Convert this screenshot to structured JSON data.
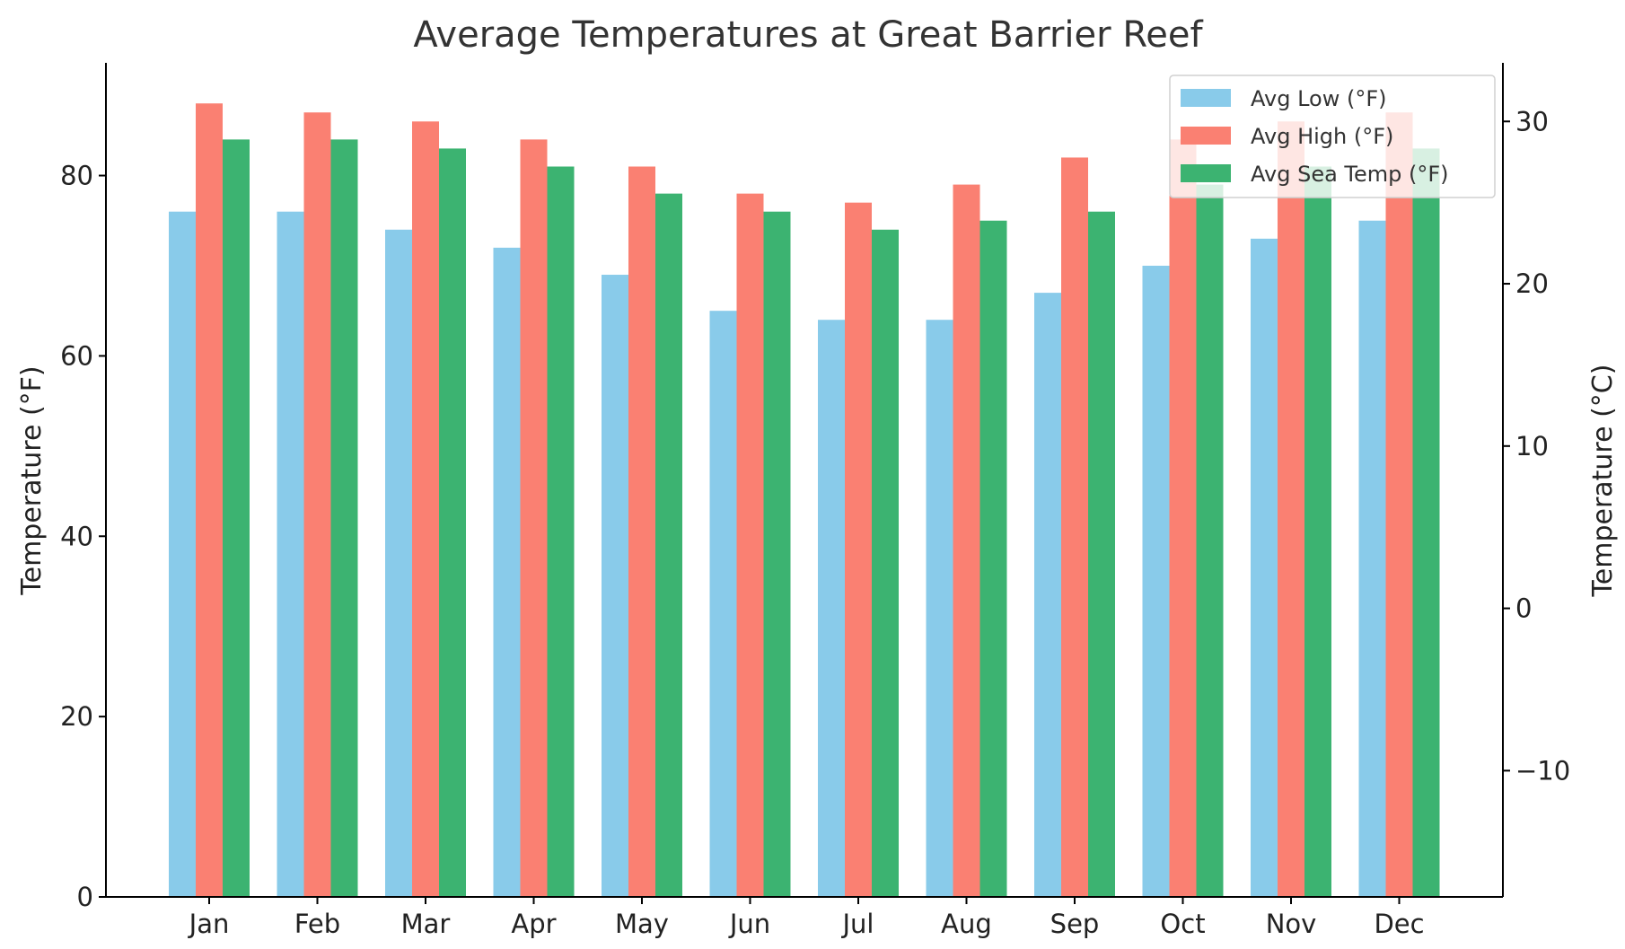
{
  "chart_data": {
    "type": "bar",
    "title": "Average Temperatures at Great Barrier Reef",
    "xlabel": "",
    "ylabel": "Temperature (°F)",
    "ylabel_right": "Temperature (°C)",
    "categories": [
      "Jan",
      "Feb",
      "Mar",
      "Apr",
      "May",
      "Jun",
      "Jul",
      "Aug",
      "Sep",
      "Oct",
      "Nov",
      "Dec"
    ],
    "series": [
      {
        "name": "Avg Low (°F)",
        "color": "#89CBEA",
        "values": [
          76,
          76,
          74,
          72,
          69,
          65,
          64,
          64,
          67,
          70,
          73,
          75
        ]
      },
      {
        "name": "Avg High (°F)",
        "color": "#FA8072",
        "values": [
          88,
          87,
          86,
          84,
          81,
          78,
          77,
          79,
          82,
          84,
          86,
          87
        ]
      },
      {
        "name": "Avg Sea Temp (°F)",
        "color": "#3CB371",
        "values": [
          84,
          84,
          83,
          81,
          78,
          76,
          74,
          75,
          76,
          79,
          81,
          83
        ]
      }
    ],
    "ylim": [
      0,
      92.5
    ],
    "yticks": [
      0,
      20,
      40,
      60,
      80
    ],
    "ylim_right": [
      -17.78,
      33.61
    ],
    "yticks_right": [
      -10,
      0,
      10,
      20,
      30
    ],
    "yticks_right_labels": [
      "−10",
      "0",
      "10",
      "20",
      "30"
    ],
    "grid": false,
    "legend": "top-right"
  }
}
